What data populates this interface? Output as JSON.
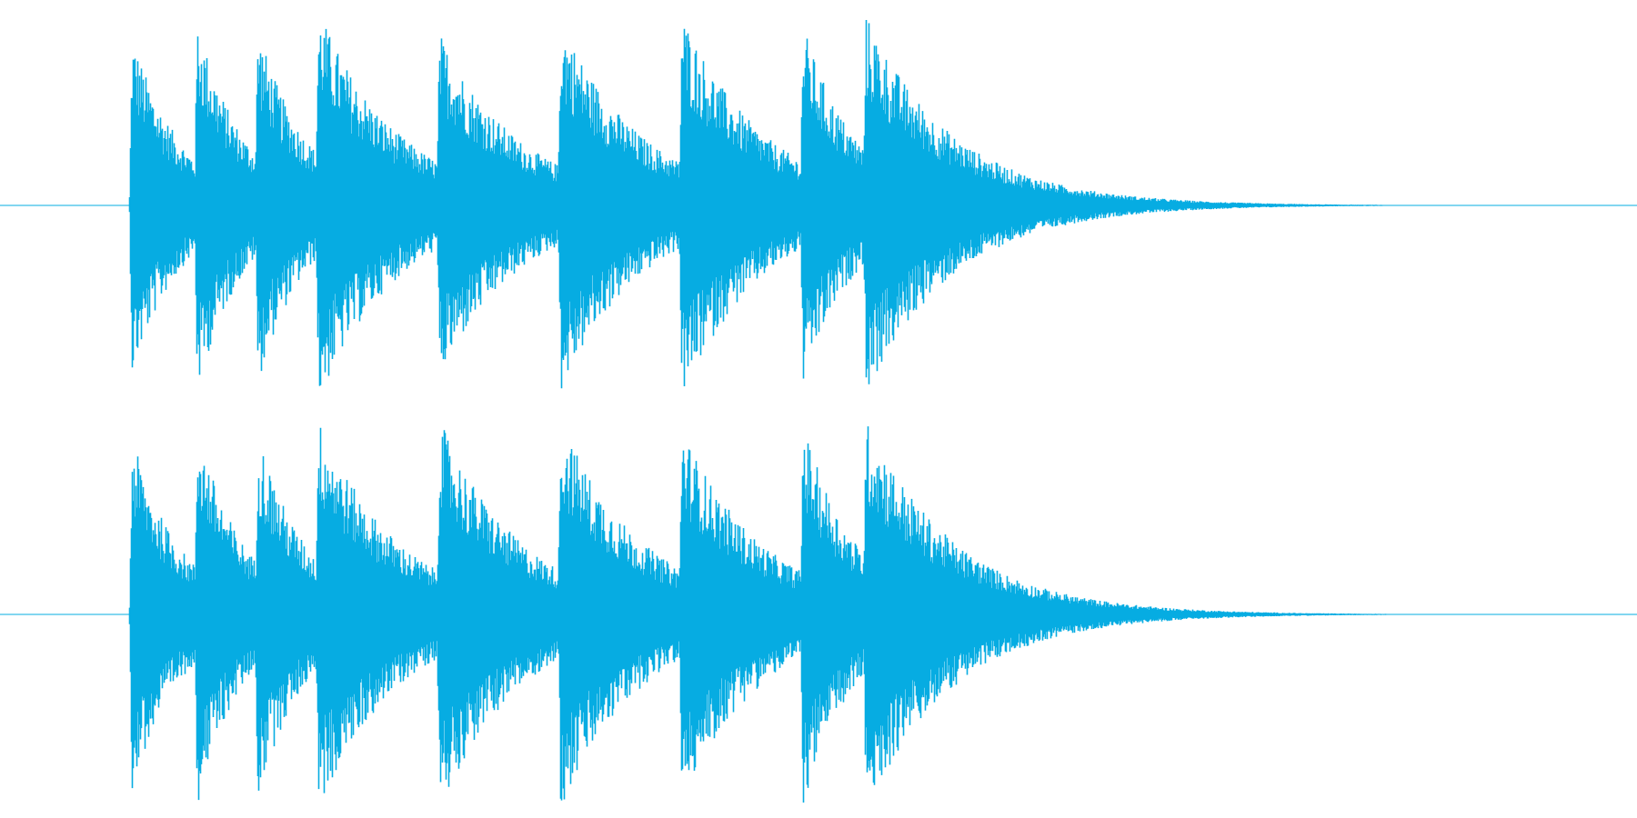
{
  "waveform": {
    "color": "#06ace2",
    "background": "#ffffff",
    "channels": [
      {
        "name": "",
        "bursts": [
          {
            "onset": 0.0788,
            "peak": 0.95,
            "decay": 0.03
          },
          {
            "onset": 0.1186,
            "peak": 0.98,
            "decay": 0.028
          },
          {
            "onset": 0.1556,
            "peak": 0.92,
            "decay": 0.03
          },
          {
            "onset": 0.1926,
            "peak": 1.0,
            "decay": 0.05
          },
          {
            "onset": 0.2666,
            "peak": 0.88,
            "decay": 0.05
          },
          {
            "onset": 0.3406,
            "peak": 0.96,
            "decay": 0.05
          },
          {
            "onset": 0.4146,
            "peak": 0.99,
            "decay": 0.05
          },
          {
            "onset": 0.4886,
            "peak": 0.94,
            "decay": 0.032
          },
          {
            "onset": 0.527,
            "peak": 0.96,
            "decay": 0.055
          }
        ]
      },
      {
        "name": "",
        "bursts": [
          {
            "onset": 0.0788,
            "peak": 0.98,
            "decay": 0.03
          },
          {
            "onset": 0.1186,
            "peak": 1.0,
            "decay": 0.028
          },
          {
            "onset": 0.1556,
            "peak": 0.95,
            "decay": 0.03
          },
          {
            "onset": 0.1926,
            "peak": 1.0,
            "decay": 0.05
          },
          {
            "onset": 0.2666,
            "peak": 1.0,
            "decay": 0.05
          },
          {
            "onset": 0.3406,
            "peak": 1.0,
            "decay": 0.05
          },
          {
            "onset": 0.4146,
            "peak": 0.95,
            "decay": 0.05
          },
          {
            "onset": 0.4886,
            "peak": 1.0,
            "decay": 0.032
          },
          {
            "onset": 0.527,
            "peak": 1.0,
            "decay": 0.055
          }
        ]
      }
    ]
  }
}
